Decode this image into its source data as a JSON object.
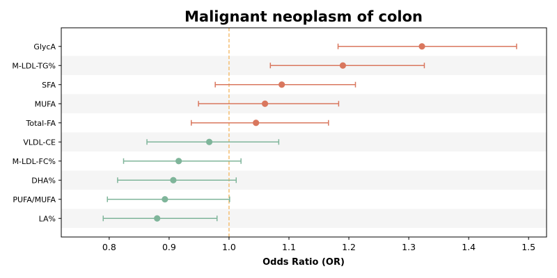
{
  "chart_data": {
    "type": "forest",
    "title": "Malignant neoplasm of colon",
    "xlabel": "Odds Ratio (OR)",
    "xlim": [
      0.72,
      1.53
    ],
    "xticks": [
      0.8,
      0.9,
      1.0,
      1.1,
      1.2,
      1.3,
      1.4,
      1.5
    ],
    "reference_line": 1.0,
    "reference_color": "#f5c27a",
    "row_shading": "#f5f5f5",
    "rows": [
      {
        "label": "GlycA",
        "or": 1.322,
        "lower": 1.182,
        "upper": 1.48,
        "color": "#d9775e"
      },
      {
        "label": "M-LDL-TG%",
        "or": 1.19,
        "lower": 1.069,
        "upper": 1.326,
        "color": "#d9775e"
      },
      {
        "label": "SFA",
        "or": 1.088,
        "lower": 0.977,
        "upper": 1.211,
        "color": "#d9775e"
      },
      {
        "label": "MUFA",
        "or": 1.06,
        "lower": 0.949,
        "upper": 1.183,
        "color": "#d9775e"
      },
      {
        "label": "Total-FA",
        "or": 1.045,
        "lower": 0.937,
        "upper": 1.166,
        "color": "#d9775e"
      },
      {
        "label": "VLDL-CE",
        "or": 0.967,
        "lower": 0.863,
        "upper": 1.083,
        "color": "#7fb59a"
      },
      {
        "label": "M-LDL-FC%",
        "or": 0.916,
        "lower": 0.824,
        "upper": 1.02,
        "color": "#7fb59a"
      },
      {
        "label": "DHA%",
        "or": 0.907,
        "lower": 0.814,
        "upper": 1.012,
        "color": "#7fb59a"
      },
      {
        "label": "PUFA/MUFA",
        "or": 0.893,
        "lower": 0.797,
        "upper": 1.001,
        "color": "#7fb59a"
      },
      {
        "label": "LA%",
        "or": 0.88,
        "lower": 0.79,
        "upper": 0.98,
        "color": "#7fb59a"
      }
    ]
  }
}
